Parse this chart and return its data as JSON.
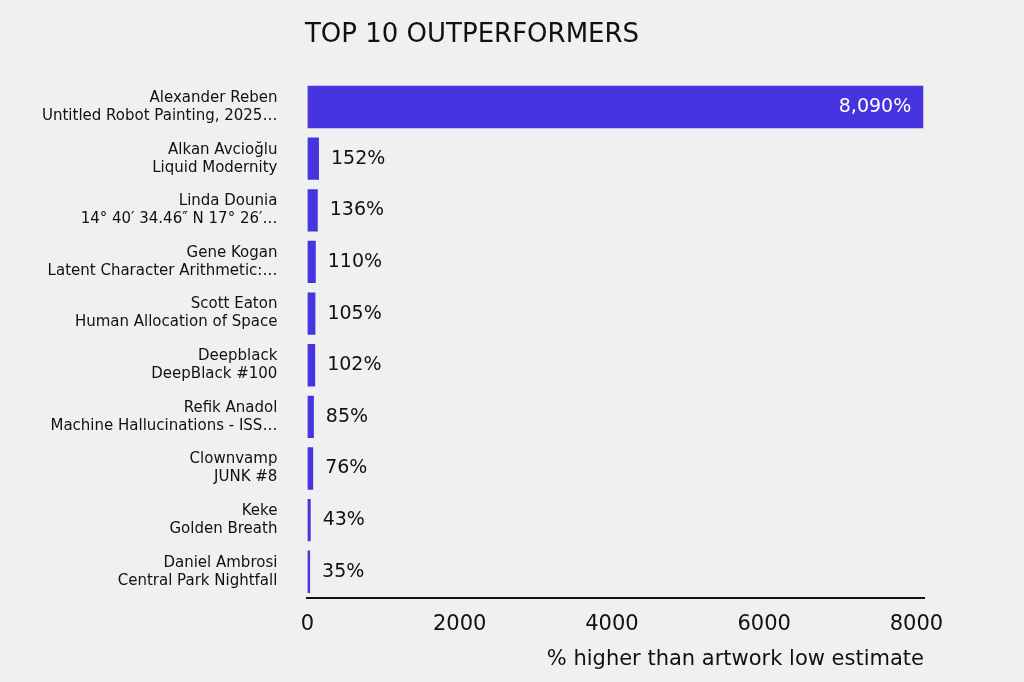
{
  "chart_data": {
    "type": "bar",
    "orientation": "horizontal",
    "title": "TOP 10 OUTPERFORMERS",
    "xlabel": "% higher than artwork low estimate",
    "categories": [
      "Alexander Reben\nUntitled Robot Painting, 2025…",
      "Alkan Avcioğlu\nLiquid Modernity",
      "Linda Dounia\n14° 40′ 34.46″ N 17° 26′…",
      "Gene Kogan\nLatent Character Arithmetic:…",
      "Scott Eaton\nHuman Allocation of Space",
      "Deepblack\nDeepBlack #100",
      "Refik Anadol\nMachine Hallucinations - ISS…",
      "Clownvamp\nJUNK #8",
      "Keke\nGolden Breath",
      "Daniel Ambrosi\nCentral Park Nightfall"
    ],
    "values": [
      8090,
      152,
      136,
      110,
      105,
      102,
      85,
      76,
      43,
      35
    ],
    "value_labels": [
      "8,090%",
      "152%",
      "136%",
      "110%",
      "105%",
      "102%",
      "85%",
      "76%",
      "43%",
      "35%"
    ],
    "color": "#4634e0",
    "xlim": [
      0,
      8100
    ],
    "xticks": [
      0,
      2000,
      4000,
      6000,
      8000
    ],
    "grid": false,
    "legend": false
  }
}
